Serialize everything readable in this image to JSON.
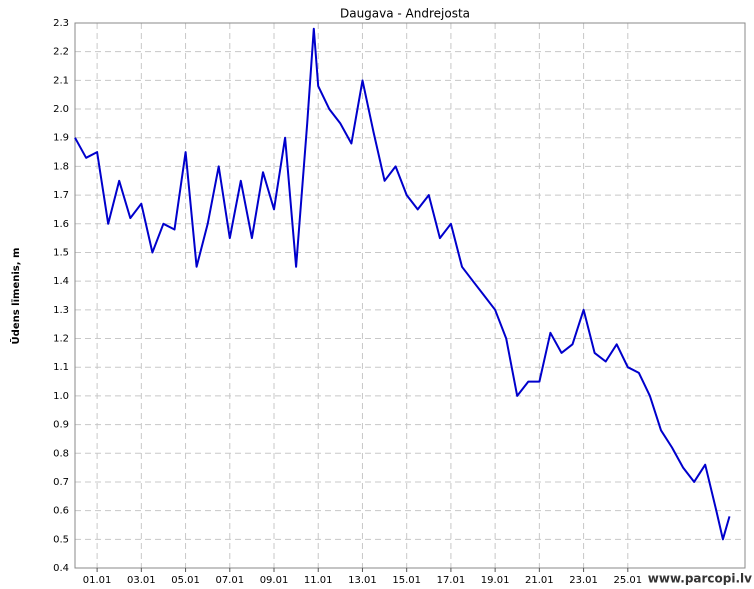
{
  "chart_data": {
    "type": "line",
    "title": "Daugava - Andrejosta",
    "y_label": "Ūdens līmenis, m",
    "watermark": "www.parcopi.lv",
    "x": [
      0,
      0.5,
      1,
      1.5,
      2,
      2.5,
      3,
      3.5,
      4,
      4.5,
      5,
      5.5,
      6,
      6.5,
      7,
      7.5,
      8,
      8.5,
      9,
      9.5,
      10,
      10.5,
      10.8,
      11,
      11.5,
      12,
      12.5,
      13,
      13.5,
      14,
      14.5,
      15,
      15.5,
      16,
      16.5,
      17,
      17.5,
      18,
      18.5,
      19,
      19.5,
      20,
      20.5,
      21,
      21.5,
      22,
      22.5,
      23,
      23.5,
      24,
      24.5,
      25,
      25.5,
      26,
      26.5,
      27,
      27.5,
      28,
      28.5,
      29,
      29.3,
      29.6
    ],
    "series": [
      {
        "name": "Daugava - Andrejosta",
        "color": "#0000cc",
        "values": [
          1.9,
          1.83,
          1.85,
          1.6,
          1.75,
          1.62,
          1.67,
          1.5,
          1.6,
          1.58,
          1.85,
          1.45,
          1.6,
          1.8,
          1.55,
          1.75,
          1.55,
          1.78,
          1.65,
          1.9,
          1.45,
          1.95,
          2.28,
          2.08,
          2.0,
          1.95,
          1.88,
          2.1,
          1.92,
          1.75,
          1.8,
          1.7,
          1.65,
          1.7,
          1.55,
          1.6,
          1.45,
          1.4,
          1.35,
          1.3,
          1.2,
          1.0,
          1.05,
          1.05,
          1.22,
          1.15,
          1.18,
          1.3,
          1.15,
          1.12,
          1.18,
          1.1,
          1.08,
          1.0,
          0.88,
          0.82,
          0.75,
          0.7,
          0.76,
          0.6,
          0.5,
          0.58
        ]
      }
    ],
    "xlim": [
      0,
      30.3
    ],
    "xticks": [
      {
        "value": 1,
        "label": "01.01"
      },
      {
        "value": 3,
        "label": "03.01"
      },
      {
        "value": 5,
        "label": "05.01"
      },
      {
        "value": 7,
        "label": "07.01"
      },
      {
        "value": 9,
        "label": "09.01"
      },
      {
        "value": 11,
        "label": "11.01"
      },
      {
        "value": 13,
        "label": "13.01"
      },
      {
        "value": 15,
        "label": "15.01"
      },
      {
        "value": 17,
        "label": "17.01"
      },
      {
        "value": 19,
        "label": "19.01"
      },
      {
        "value": 21,
        "label": "21.01"
      },
      {
        "value": 23,
        "label": "23.01"
      },
      {
        "value": 25,
        "label": "25.01"
      }
    ],
    "ylim": [
      0.4,
      2.3
    ],
    "yticks": [
      0.4,
      0.5,
      0.6,
      0.7,
      0.8,
      0.9,
      {
        "value": 1.0,
        "label": "1.0"
      },
      1.1,
      1.2,
      1.3,
      1.4,
      1.5,
      1.6,
      1.7,
      1.8,
      1.9,
      {
        "value": 2.0,
        "label": "2.0"
      },
      2.1,
      2.2,
      2.3
    ],
    "grid": true
  }
}
